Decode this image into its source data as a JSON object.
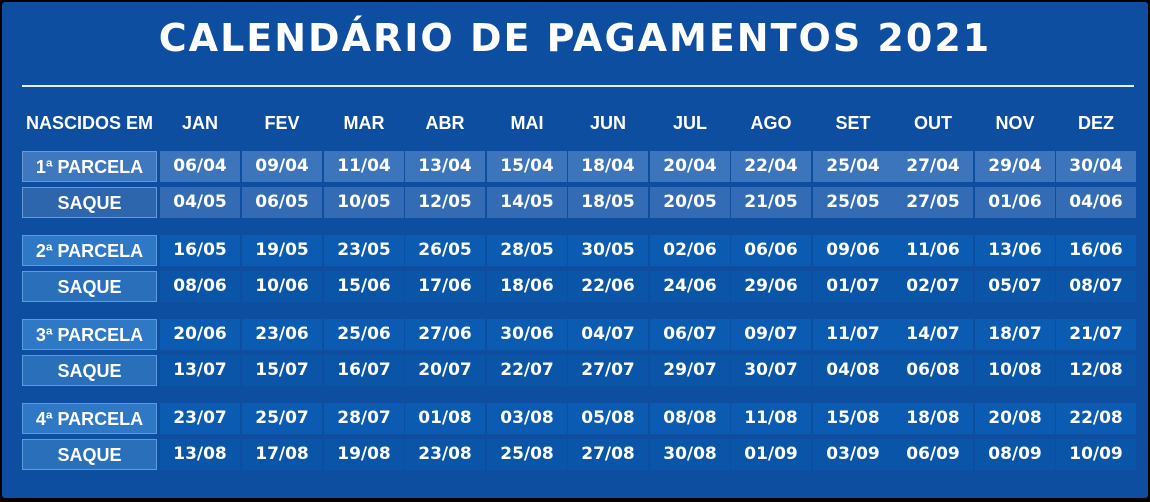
{
  "title": "CALENDÁRIO DE PAGAMENTOS 2021",
  "header": {
    "label": "NASCIDOS EM",
    "months": [
      "JAN",
      "FEV",
      "MAR",
      "ABR",
      "MAI",
      "JUN",
      "JUL",
      "AGO",
      "SET",
      "OUT",
      "NOV",
      "DEZ"
    ]
  },
  "groups": [
    {
      "parcela": "1ª PARCELA",
      "saque_label": "SAQUE",
      "parcela_dates": [
        "06/04",
        "09/04",
        "11/04",
        "13/04",
        "15/04",
        "18/04",
        "20/04",
        "22/04",
        "25/04",
        "27/04",
        "29/04",
        "30/04"
      ],
      "saque_dates": [
        "04/05",
        "06/05",
        "10/05",
        "12/05",
        "14/05",
        "18/05",
        "20/05",
        "21/05",
        "25/05",
        "27/05",
        "01/06",
        "04/06"
      ]
    },
    {
      "parcela": "2ª PARCELA",
      "saque_label": "SAQUE",
      "parcela_dates": [
        "16/05",
        "19/05",
        "23/05",
        "26/05",
        "28/05",
        "30/05",
        "02/06",
        "06/06",
        "09/06",
        "11/06",
        "13/06",
        "16/06"
      ],
      "saque_dates": [
        "08/06",
        "10/06",
        "15/06",
        "17/06",
        "18/06",
        "22/06",
        "24/06",
        "29/06",
        "01/07",
        "02/07",
        "05/07",
        "08/07"
      ]
    },
    {
      "parcela": "3ª PARCELA",
      "saque_label": "SAQUE",
      "parcela_dates": [
        "20/06",
        "23/06",
        "25/06",
        "27/06",
        "30/06",
        "04/07",
        "06/07",
        "09/07",
        "11/07",
        "14/07",
        "18/07",
        "21/07"
      ],
      "saque_dates": [
        "13/07",
        "15/07",
        "16/07",
        "20/07",
        "22/07",
        "27/07",
        "29/07",
        "30/07",
        "04/08",
        "06/08",
        "10/08",
        "12/08"
      ]
    },
    {
      "parcela": "4ª PARCELA",
      "saque_label": "SAQUE",
      "parcela_dates": [
        "23/07",
        "25/07",
        "28/07",
        "01/08",
        "03/08",
        "05/08",
        "08/08",
        "11/08",
        "15/08",
        "18/08",
        "20/08",
        "22/08"
      ],
      "saque_dates": [
        "13/08",
        "17/08",
        "19/08",
        "23/08",
        "25/08",
        "27/08",
        "30/08",
        "01/09",
        "03/09",
        "06/09",
        "08/09",
        "10/09"
      ]
    }
  ]
}
